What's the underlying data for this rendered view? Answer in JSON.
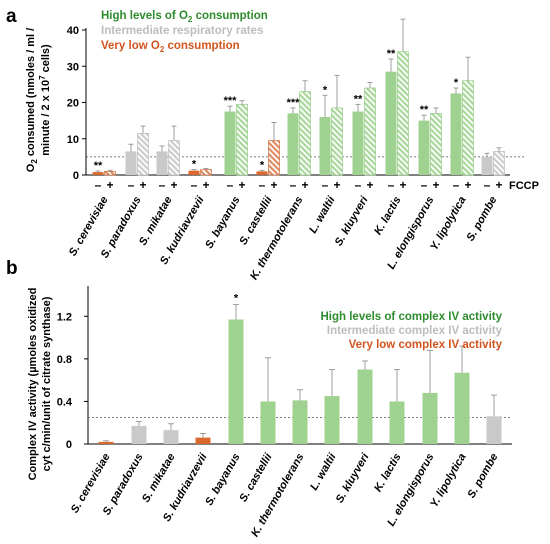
{
  "chart_data": [
    {
      "panel_label": "a",
      "type": "bar",
      "ylabel_lines": [
        "O2 consumed (nmoles / ml /",
        "minute / 2 x 10",
        "7",
        " cells)"
      ],
      "ylabel_sub": "2",
      "ylim": [
        0,
        40
      ],
      "yticks": [
        "0",
        "10",
        "20",
        "30",
        "40"
      ],
      "treatment_label": "FCCP",
      "treatment_levels": [
        "–",
        "+"
      ],
      "reference_line": 5,
      "legend": [
        {
          "prefix": "High levels of O",
          "sub": "2",
          "suffix": " consumption",
          "color": "#2e8b2e"
        },
        {
          "prefix": "Intermediate respiratory rates",
          "sub": "",
          "suffix": "",
          "color": "#bdbdbd"
        },
        {
          "prefix": "Very low O",
          "sub": "2",
          "suffix": " consumption",
          "color": "#d2541e"
        }
      ],
      "categories": [
        "S. cerevisiae",
        "S. paradoxus",
        "S. mikatae",
        "S. kudriavzevii",
        "S. bayanus",
        "S. castellii",
        "K. thermotolerans",
        "L. waltii",
        "S. kluyveri",
        "K. lactis",
        "L. elongisporus",
        "Y. lipolytica",
        "S. pombe"
      ],
      "groups": [
        "low",
        "intermediate",
        "intermediate",
        "low",
        "high",
        "low",
        "high",
        "high",
        "high",
        "high",
        "high",
        "high",
        "intermediate"
      ],
      "series": [
        {
          "name": "–",
          "values": [
            0.8,
            6.5,
            6.5,
            1.2,
            17.5,
            1.0,
            17.0,
            16.0,
            17.5,
            28.5,
            15.0,
            22.5,
            5.0
          ],
          "errors": [
            0.3,
            2.0,
            1.5,
            0.3,
            1.5,
            0.3,
            1.5,
            6.0,
            2.0,
            3.5,
            1.5,
            1.5,
            1.0
          ]
        },
        {
          "name": "+",
          "values": [
            1.0,
            11.5,
            9.5,
            1.5,
            19.5,
            9.5,
            23.0,
            18.5,
            24.0,
            34.0,
            17.0,
            26.0,
            6.5
          ],
          "errors": [
            0.3,
            2.0,
            4.0,
            0.3,
            1.0,
            5.0,
            3.0,
            9.0,
            1.5,
            9.0,
            1.5,
            6.5,
            1.0
          ]
        }
      ],
      "significance": [
        "**",
        "",
        "",
        "*",
        "***",
        "*",
        "***",
        "*",
        "**",
        "**",
        "**",
        "*",
        ""
      ]
    },
    {
      "panel_label": "b",
      "type": "bar",
      "ylabel_lines": [
        "Complex IV activity (µmoles oxidized",
        "cyt c/min/unit of citrate synthase)"
      ],
      "ylim": [
        0,
        1.4
      ],
      "yticks": [
        "0",
        "0.4",
        "0.8",
        "1.2"
      ],
      "reference_line": 0.25,
      "legend": [
        {
          "prefix": "High levels of complex IV activity",
          "color": "#2e8b2e"
        },
        {
          "prefix": "Intermediate complex IV activity",
          "color": "#bdbdbd"
        },
        {
          "prefix": "Very low complex IV activity",
          "color": "#d2541e"
        }
      ],
      "categories": [
        "S. cerevisiae",
        "S. paradoxus",
        "S. mikatae",
        "S. kudriavzevii",
        "S. bayanus",
        "S. castellii",
        "K. thermotolerans",
        "L. waltii",
        "S. kluyveri",
        "K. lactis",
        "L. elongisporus",
        "Y. lipolytica",
        "S. pombe"
      ],
      "groups": [
        "low",
        "intermediate",
        "intermediate",
        "low",
        "high",
        "high",
        "high",
        "high",
        "high",
        "high",
        "high",
        "high",
        "intermediate"
      ],
      "values": [
        0.02,
        0.17,
        0.13,
        0.06,
        1.17,
        0.4,
        0.41,
        0.45,
        0.7,
        0.4,
        0.48,
        0.67,
        0.26
      ],
      "errors": [
        0.01,
        0.04,
        0.06,
        0.04,
        0.14,
        0.41,
        0.1,
        0.25,
        0.08,
        0.3,
        0.4,
        0.25,
        0.2
      ],
      "significance": [
        "",
        "",
        "",
        "",
        "*",
        "",
        "",
        "",
        "",
        "",
        "",
        "",
        ""
      ]
    }
  ]
}
